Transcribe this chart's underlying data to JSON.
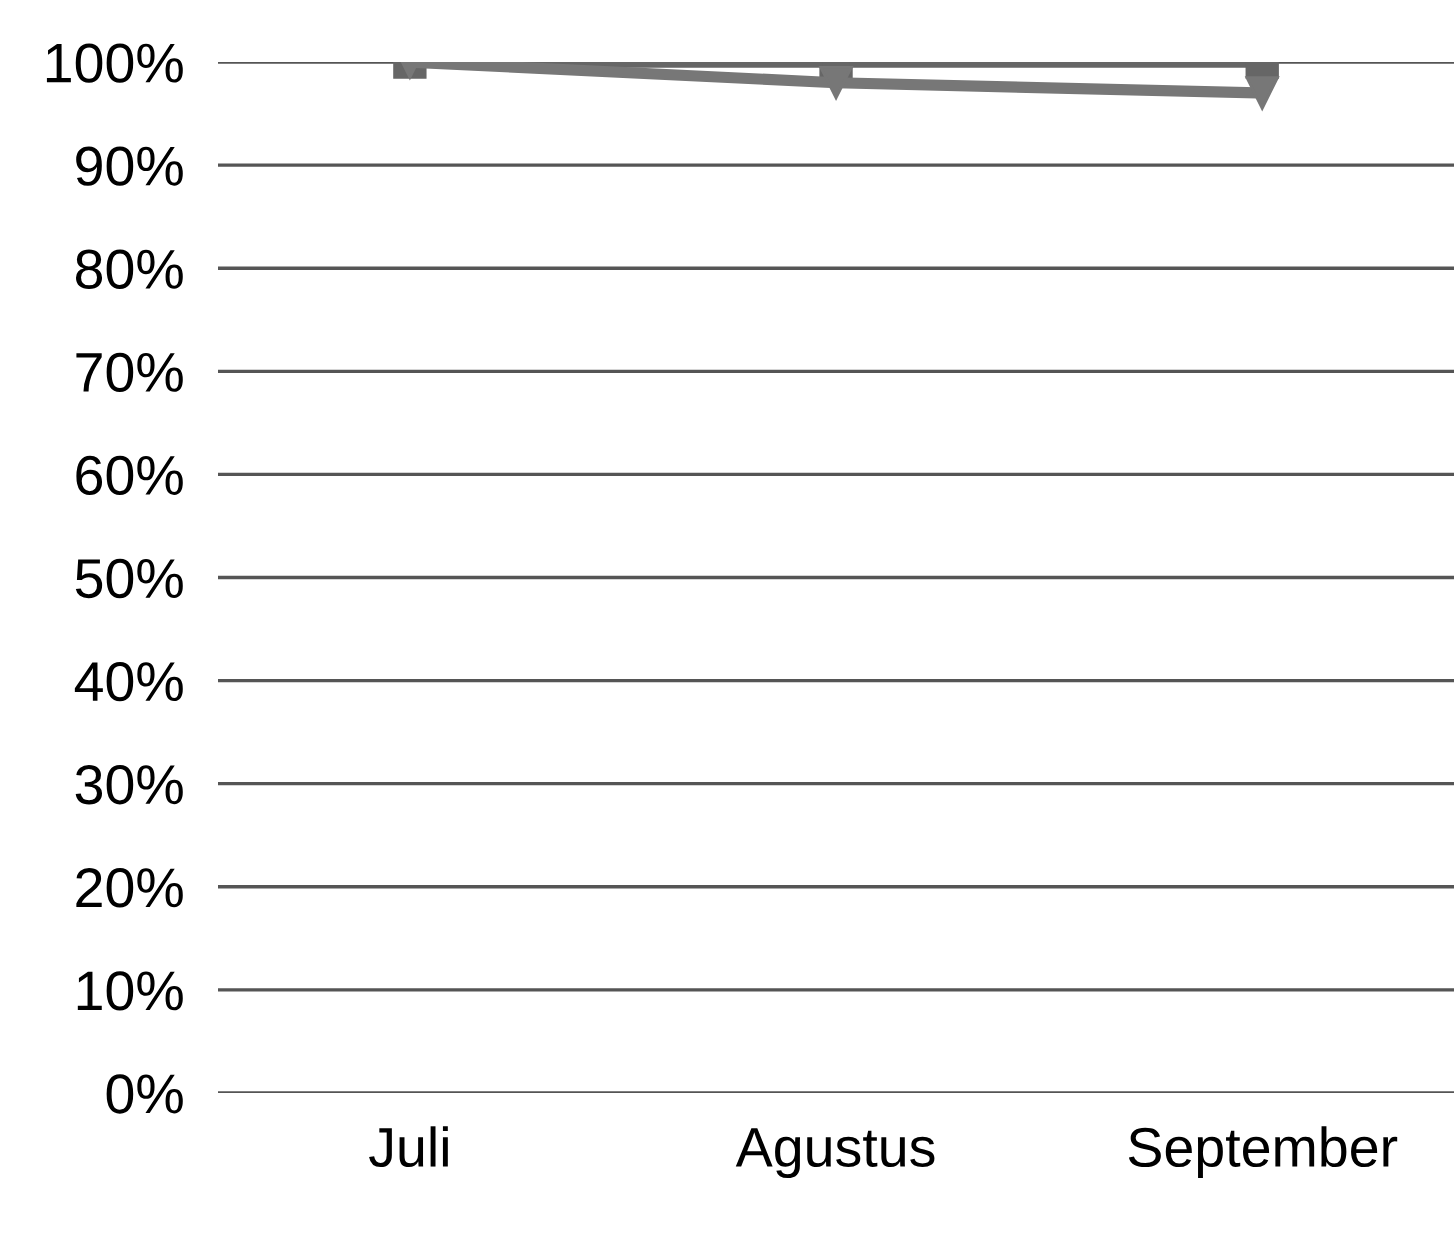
{
  "chart_data": {
    "type": "line",
    "categories": [
      "Juli",
      "Agustus",
      "September"
    ],
    "series": [
      {
        "color": "#666666",
        "values": [
          100,
          100,
          100
        ],
        "marker": "square"
      },
      {
        "color": "#777777",
        "values": [
          100,
          98,
          97
        ],
        "marker": "triangle"
      }
    ],
    "ylim": [
      0,
      100
    ],
    "yticks": [
      {
        "value": 0,
        "label": "0%"
      },
      {
        "value": 10,
        "label": "10%"
      },
      {
        "value": 20,
        "label": "20%"
      },
      {
        "value": 30,
        "label": "30%"
      },
      {
        "value": 40,
        "label": "40%"
      },
      {
        "value": 50,
        "label": "50%"
      },
      {
        "value": 60,
        "label": "60%"
      },
      {
        "value": 70,
        "label": "70%"
      },
      {
        "value": 80,
        "label": "80%"
      },
      {
        "value": 90,
        "label": "90%"
      },
      {
        "value": 100,
        "label": "100%"
      }
    ],
    "grid": "y",
    "legend": false
  }
}
